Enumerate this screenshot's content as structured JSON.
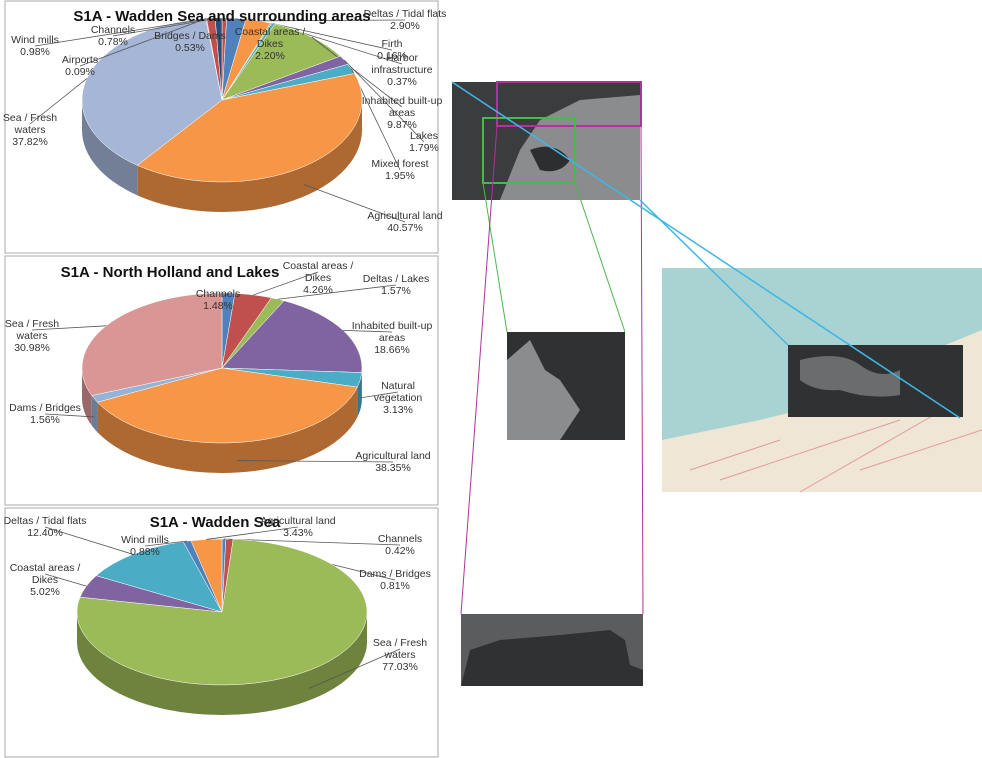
{
  "chart_data": [
    {
      "type": "pie",
      "title": "S1A - Wadden Sea and surrounding areas",
      "categories": [
        "Bridges / Dams",
        "Coastal areas / Dikes",
        "Deltas / Tidal flats",
        "Firth",
        "Harbor infrastructure",
        "Inhabited built-up areas",
        "Lakes",
        "Mixed forest",
        "Agricultural land",
        "Sea / Fresh waters",
        "Airports",
        "Wind mills",
        "Channels"
      ],
      "values": [
        0.53,
        2.2,
        2.9,
        0.16,
        0.37,
        9.87,
        1.79,
        1.95,
        40.57,
        37.82,
        0.09,
        0.98,
        0.78
      ],
      "value_labels": [
        "0.53%",
        "2.20%",
        "2.90%",
        "0.16%",
        "0.37%",
        "9.87%",
        "1.79%",
        "1.95%",
        "40.57%",
        "37.82%",
        "0.09%",
        "0.98%",
        "0.78%"
      ],
      "colors": [
        "#c0504d",
        "#4f81bd",
        "#f79646",
        "#9bbb59",
        "#4bacc6",
        "#9bbb59",
        "#8064a2",
        "#4bacc6",
        "#f79646",
        "#a5b6d6",
        "#c0504d",
        "#c0504d",
        "#2c4d75"
      ]
    },
    {
      "type": "pie",
      "title": "S1A - North Holland and Lakes",
      "categories": [
        "Channels",
        "Coastal areas / Dikes",
        "Deltas / Lakes",
        "Inhabited built-up areas",
        "Natural vegetation",
        "Agricultural land",
        "Dams / Bridges",
        "Sea / Fresh waters"
      ],
      "values": [
        1.48,
        4.26,
        1.57,
        18.66,
        3.13,
        38.35,
        1.56,
        30.98
      ],
      "value_labels": [
        "1.48%",
        "4.26%",
        "1.57%",
        "18.66%",
        "3.13%",
        "38.35%",
        "1.56%",
        "30.98%"
      ],
      "colors": [
        "#4f81bd",
        "#c0504d",
        "#9bbb59",
        "#8064a2",
        "#4bacc6",
        "#f79646",
        "#95b3d7",
        "#d99694"
      ]
    },
    {
      "type": "pie",
      "title": "S1A - Wadden Sea",
      "categories": [
        "Channels",
        "Dams / Bridges",
        "Sea / Fresh waters",
        "Coastal areas / Dikes",
        "Deltas / Tidal flats",
        "Wind mills",
        "Agricultural land"
      ],
      "values": [
        0.42,
        0.81,
        77.03,
        5.02,
        12.4,
        0.88,
        3.43
      ],
      "value_labels": [
        "0.42%",
        "0.81%",
        "77.03%",
        "5.02%",
        "12.40%",
        "0.88%",
        "3.43%"
      ],
      "colors": [
        "#4f81bd",
        "#c0504d",
        "#9bbb59",
        "#8064a2",
        "#4bacc6",
        "#4f81bd",
        "#f79646"
      ]
    }
  ]
}
